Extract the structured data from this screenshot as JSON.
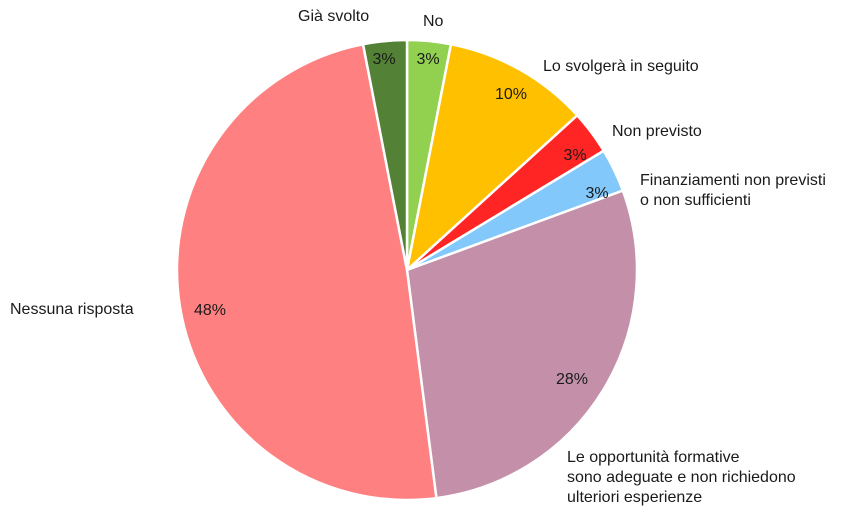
{
  "chart_data": {
    "type": "pie",
    "categories": [
      "No",
      "Lo svolgerà in seguito",
      "Non previsto",
      "Finanziamenti non previsti o non sufficienti",
      "Le opportunità formative sono adeguate e non richiedono ulteriori esperienze",
      "Nessuna risposta",
      "Già svolto"
    ],
    "values": [
      3,
      10,
      3,
      3,
      28,
      48,
      3
    ],
    "value_labels": [
      "3%",
      "10%",
      "3%",
      "3%",
      "28%",
      "48%",
      "3%"
    ],
    "colors": [
      "#92d050",
      "#ffc000",
      "#ff2525",
      "#82c8fa",
      "#c490a9",
      "#ff8080",
      "#538135"
    ]
  }
}
